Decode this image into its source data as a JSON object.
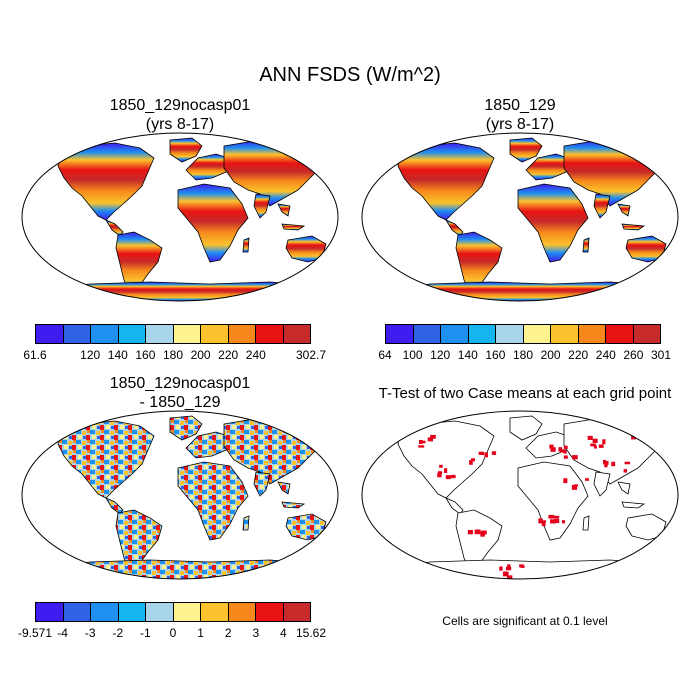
{
  "title": "ANN FSDS (W/m^2)",
  "panels": [
    {
      "title_line1": "1850_129nocasp01",
      "title_line2": "(yrs 8-17)"
    },
    {
      "title_line1": "1850_129",
      "title_line2": "(yrs 8-17)"
    },
    {
      "title_line1": "1850_129nocasp01",
      "title_line2": "- 1850_129"
    },
    {
      "title_line1": "T-Test of two Case means at each grid point",
      "title_line2": ""
    }
  ],
  "colorbars": {
    "cb1": {
      "colors": [
        "#3f1cf0",
        "#2f62e6",
        "#1f8ff0",
        "#14b5f0",
        "#a8d4ec",
        "#fdf38f",
        "#fbc22d",
        "#f6881b",
        "#e81313",
        "#c62a2a"
      ],
      "labels": [
        "61.6",
        "",
        "120",
        "140",
        "160",
        "180",
        "200",
        "220",
        "240",
        "",
        "302.7"
      ]
    },
    "cb2": {
      "colors": [
        "#3f1cf0",
        "#2f62e6",
        "#1f8ff0",
        "#14b5f0",
        "#a8d4ec",
        "#fdf38f",
        "#fbc22d",
        "#f6881b",
        "#e81313",
        "#c62a2a"
      ],
      "labels": [
        "64",
        "100",
        "120",
        "140",
        "160",
        "180",
        "200",
        "220",
        "240",
        "260",
        "301"
      ]
    },
    "cb3": {
      "colors": [
        "#3f1cf0",
        "#2f62e6",
        "#1f8ff0",
        "#14b5f0",
        "#a8d4ec",
        "#fdf38f",
        "#fbc22d",
        "#f6881b",
        "#e81313",
        "#c62a2a"
      ],
      "labels": [
        "-9.571",
        "-4",
        "-3",
        "-2",
        "-1",
        "0",
        "1",
        "2",
        "3",
        "4",
        "15.62"
      ]
    }
  },
  "significance_note": "Cells are significant at 0.1 level",
  "significance_color": "#e4001b"
}
